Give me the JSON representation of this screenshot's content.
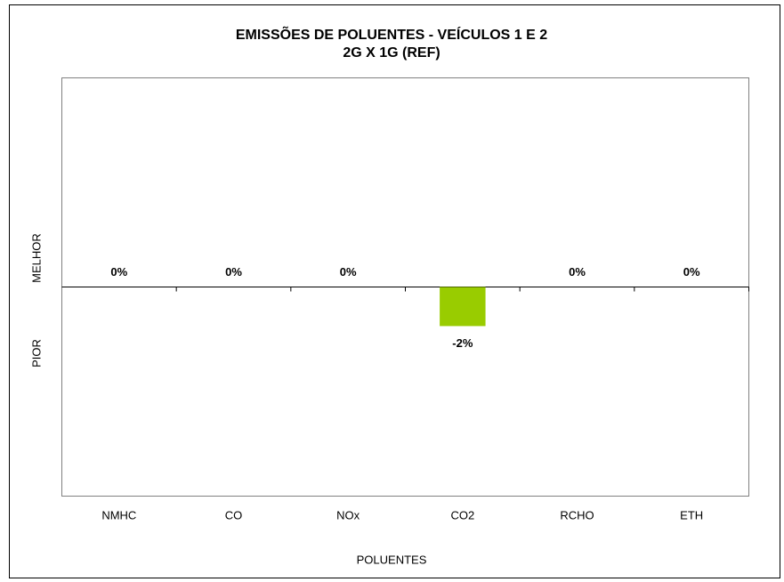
{
  "chart_data": {
    "type": "bar",
    "title": "EMISSÕES DE POLUENTES - VEÍCULOS 1 E 2",
    "subtitle": "2G X 1G (REF)",
    "xlabel": "POLUENTES",
    "ylabel_positive": "MELHOR",
    "ylabel_negative": "PIOR",
    "categories": [
      "NMHC",
      "CO",
      "NOx",
      "CO2",
      "RCHO",
      "ETH"
    ],
    "values": [
      0,
      0,
      0,
      -2,
      0,
      0
    ],
    "value_labels": [
      "0%",
      "0%",
      "0%",
      "-2%",
      "0%",
      "0%"
    ],
    "color": "#99cc00",
    "ylim": [
      -10.7,
      10.7
    ]
  }
}
